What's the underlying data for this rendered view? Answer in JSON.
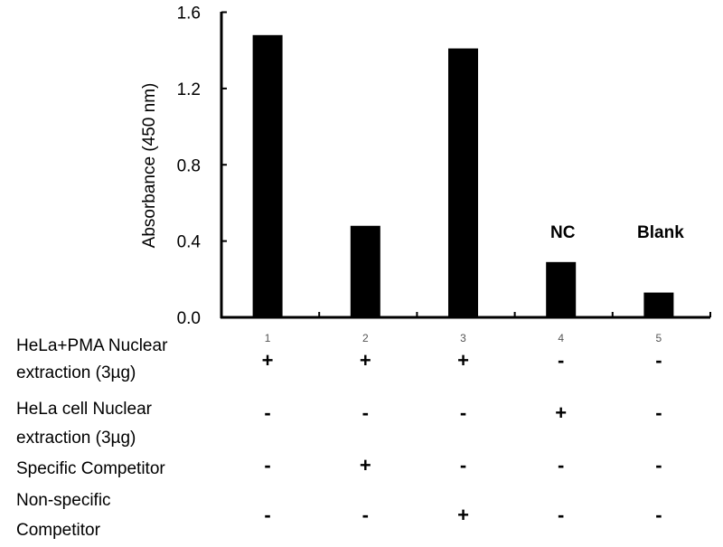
{
  "chart_data": {
    "type": "bar",
    "title": "",
    "xlabel": "",
    "ylabel": "Absorbance (450 nm)",
    "ylim": [
      0,
      1.6
    ],
    "yticks": [
      "0.0",
      "0.4",
      "0.8",
      "1.2",
      "1.6"
    ],
    "categories": [
      "1",
      "2",
      "3",
      "4",
      "5"
    ],
    "values": [
      1.48,
      0.48,
      1.41,
      0.29,
      0.13
    ],
    "bar_color": "#000000",
    "annotations": [
      {
        "category": "4",
        "text": "NC"
      },
      {
        "category": "5",
        "text": "Blank"
      }
    ],
    "conditions": [
      {
        "label_lines": [
          "HeLa+PMA Nuclear",
          "extraction (3µg)"
        ],
        "signs": [
          "+",
          "+",
          "+",
          "-",
          "-"
        ]
      },
      {
        "label_lines": [
          "HeLa cell Nuclear",
          "extraction (3µg)"
        ],
        "signs": [
          "-",
          "-",
          "-",
          "+",
          "-"
        ]
      },
      {
        "label_lines": [
          "Specific Competitor"
        ],
        "signs": [
          "-",
          "+",
          "-",
          "-",
          "-"
        ]
      },
      {
        "label_lines": [
          "Non-specific",
          "Competitor"
        ],
        "signs": [
          "-",
          "-",
          "+",
          "-",
          "-"
        ]
      }
    ]
  }
}
